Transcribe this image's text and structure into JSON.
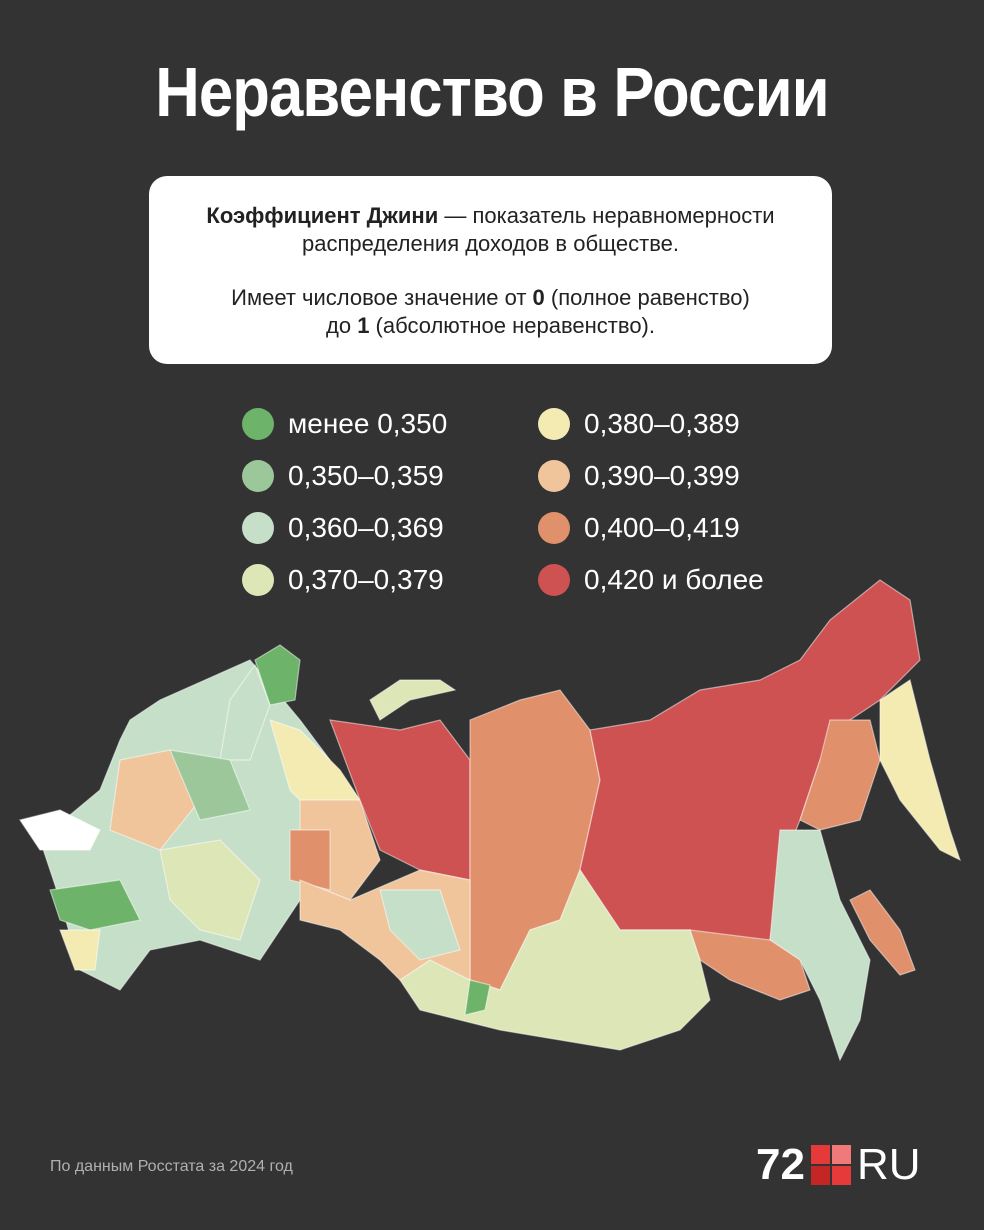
{
  "header": {
    "title": "Неравенство в России"
  },
  "info": {
    "lines": [
      [
        {
          "text": "Коэффициент Джини",
          "bold": true
        },
        {
          "text": " — показатель неравномерности",
          "bold": false
        }
      ],
      [
        {
          "text": "распределения доходов в обществе.",
          "bold": false
        }
      ],
      [
        {
          "text": "Имеет числовое значение от ",
          "bold": false
        },
        {
          "text": "0",
          "bold": true
        },
        {
          "text": " (полное равенство)",
          "bold": false
        }
      ],
      [
        {
          "text": "до ",
          "bold": false
        },
        {
          "text": "1",
          "bold": true
        },
        {
          "text": " (абсолютное неравенство).",
          "bold": false
        }
      ]
    ]
  },
  "legend": [
    {
      "label": "менее 0,350",
      "color": "#6db36a"
    },
    {
      "label": "0,350–0,359",
      "color": "#9cc79a"
    },
    {
      "label": "0,360–0,369",
      "color": "#c6dfc8"
    },
    {
      "label": "0,370–0,379",
      "color": "#dde6b6"
    },
    {
      "label": "0,380–0,389",
      "color": "#f3ebb2"
    },
    {
      "label": "0,390–0,399",
      "color": "#f0c59c"
    },
    {
      "label": "0,400–0,419",
      "color": "#e0906a"
    },
    {
      "label": "0,420 и более",
      "color": "#cf5252"
    }
  ],
  "footer": {
    "source": "По данным Росстата за 2024 год",
    "logo_number": "72",
    "logo_text": "RU"
  }
}
